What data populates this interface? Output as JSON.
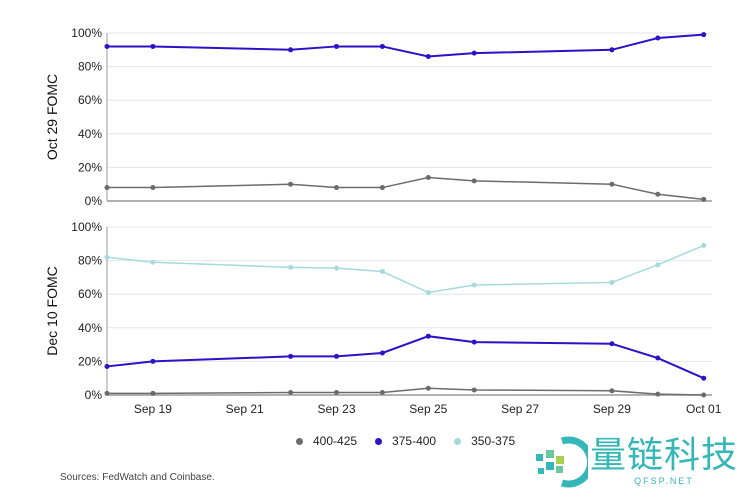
{
  "chart_data": [
    {
      "type": "line",
      "ylabel": "Oct 29 FOMC",
      "ylim": [
        0,
        100
      ],
      "yticks": [
        "0%",
        "20%",
        "40%",
        "60%",
        "80%",
        "100%"
      ],
      "grid": true,
      "x": [
        "Sep 18",
        "Sep 19",
        "Sep 22",
        "Sep 23",
        "Sep 24",
        "Sep 25",
        "Sep 26",
        "Sep 29",
        "Sep 30",
        "Oct 01"
      ],
      "series": [
        {
          "name": "400-425",
          "color": "#6b6b6b",
          "values": [
            8,
            8,
            10,
            8,
            8,
            14,
            12,
            10,
            4,
            1
          ]
        },
        {
          "name": "375-400",
          "color": "#2a12c8",
          "values": [
            92,
            92,
            90,
            92,
            92,
            86,
            88,
            90,
            97,
            99
          ]
        }
      ]
    },
    {
      "type": "line",
      "ylabel": "Dec 10 FOMC",
      "ylim": [
        0,
        100
      ],
      "yticks": [
        "0%",
        "20%",
        "40%",
        "60%",
        "80%",
        "100%"
      ],
      "grid": true,
      "xticks": [
        "Sep 19",
        "Sep 21",
        "Sep 23",
        "Sep 25",
        "Sep 27",
        "Sep 29",
        "Oct 01"
      ],
      "x": [
        "Sep 18",
        "Sep 19",
        "Sep 22",
        "Sep 23",
        "Sep 24",
        "Sep 25",
        "Sep 26",
        "Sep 29",
        "Sep 30",
        "Oct 01"
      ],
      "series": [
        {
          "name": "400-425",
          "color": "#6b6b6b",
          "values": [
            1,
            1,
            1.5,
            1.5,
            1.5,
            4,
            3,
            2.5,
            0.5,
            0
          ]
        },
        {
          "name": "375-400",
          "color": "#2a12c8",
          "values": [
            17,
            20,
            23,
            23,
            25,
            35,
            31.5,
            30.5,
            22,
            10
          ]
        },
        {
          "name": "350-375",
          "color": "#a6d9de",
          "values": [
            82,
            79,
            76,
            75.5,
            73.5,
            61,
            65.5,
            67,
            77.5,
            89
          ]
        }
      ]
    }
  ],
  "legend": [
    {
      "label": "400-425",
      "color": "#6b6b6b"
    },
    {
      "label": "375-400",
      "color": "#2a12c8"
    },
    {
      "label": "350-375",
      "color": "#a6d9de"
    }
  ],
  "source": "Sources: FedWatch and Coinbase.",
  "watermark": {
    "text": "量链科技",
    "sub": "QFSP.NET"
  }
}
